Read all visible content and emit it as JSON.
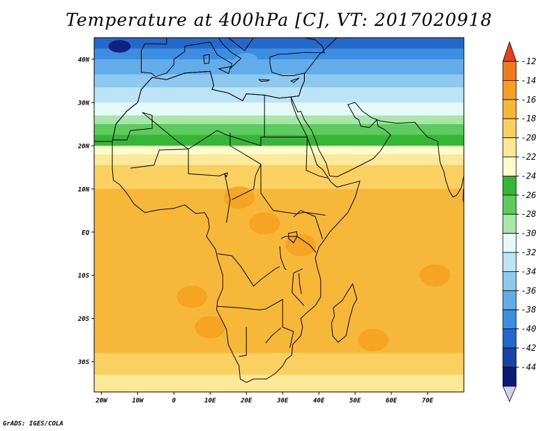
{
  "title": "Temperature at 400hPa [C], VT: 2017020918",
  "footer": "GrADS: IGES/COLA",
  "lat_labels": [
    {
      "lat": 40,
      "text": "40N"
    },
    {
      "lat": 30,
      "text": "30N"
    },
    {
      "lat": 20,
      "text": "20N"
    },
    {
      "lat": 10,
      "text": "10N"
    },
    {
      "lat": 0,
      "text": "EQ"
    },
    {
      "lat": -10,
      "text": "10S"
    },
    {
      "lat": -20,
      "text": "20S"
    },
    {
      "lat": -30,
      "text": "30S"
    }
  ],
  "lon_labels": [
    {
      "lon": -20,
      "text": "20W"
    },
    {
      "lon": -10,
      "text": "10W"
    },
    {
      "lon": 0,
      "text": "0"
    },
    {
      "lon": 10,
      "text": "10E"
    },
    {
      "lon": 20,
      "text": "20E"
    },
    {
      "lon": 30,
      "text": "30E"
    },
    {
      "lon": 40,
      "text": "40E"
    },
    {
      "lon": 50,
      "text": "50E"
    },
    {
      "lon": 60,
      "text": "60E"
    },
    {
      "lon": 70,
      "text": "70E"
    }
  ],
  "colorbar": {
    "labels": [
      "-12",
      "-14",
      "-16",
      "-18",
      "-20",
      "-22",
      "-24",
      "-26",
      "-28",
      "-30",
      "-32",
      "-34",
      "-36",
      "-38",
      "-40",
      "-42",
      "-44"
    ],
    "colors_top_to_bottom": [
      "#f07a1e",
      "#f5a020",
      "#f7b83a",
      "#fad060",
      "#fbe898",
      "#fefcc8",
      "#35b735",
      "#5ecb5e",
      "#a9e6a9",
      "#e6fafa",
      "#bde3f6",
      "#8ec9f0",
      "#62acea",
      "#3d8ee0",
      "#2468cc",
      "#1444a4",
      "#0a1a78"
    ],
    "max_arrow_color": "#e8401e",
    "min_arrow_color": "#cfd3ee"
  },
  "chart_data": {
    "type": "heatmap",
    "title": "Temperature at 400hPa [C], VT: 2017020918",
    "variable": "Temperature at 400hPa",
    "units": "C",
    "valid_time": "2017020918",
    "lon_range": [
      -22,
      80
    ],
    "lat_range": [
      -37,
      45
    ],
    "contour_levels": [
      -44,
      -42,
      -40,
      -38,
      -36,
      -34,
      -32,
      -30,
      -28,
      -26,
      -24,
      -22,
      -20,
      -18,
      -16,
      -14,
      -12
    ],
    "zonal_bands": [
      {
        "lat": 44,
        "value": -39
      },
      {
        "lat": 40,
        "value": -36
      },
      {
        "lat": 35,
        "value": -33
      },
      {
        "lat": 30,
        "value": -30
      },
      {
        "lat": 27,
        "value": -28
      },
      {
        "lat": 24,
        "value": -25
      },
      {
        "lat": 21,
        "value": -23
      },
      {
        "lat": 19,
        "value": -21
      },
      {
        "lat": 17,
        "value": -19
      },
      {
        "lat": 14,
        "value": -17
      },
      {
        "lat": 10,
        "value": -16
      },
      {
        "lat": 0,
        "value": -15
      },
      {
        "lat": -10,
        "value": -15
      },
      {
        "lat": -20,
        "value": -15
      },
      {
        "lat": -28,
        "value": -16
      },
      {
        "lat": -33,
        "value": -18
      },
      {
        "lat": -37,
        "value": -20
      }
    ],
    "warm_spots": [
      {
        "lon": 25,
        "lat": 2,
        "value": -13
      },
      {
        "lon": 35,
        "lat": -3,
        "value": -13
      },
      {
        "lon": 18,
        "lat": 8,
        "value": -13
      },
      {
        "lon": 10,
        "lat": -22,
        "value": -13
      },
      {
        "lon": 5,
        "lat": -15,
        "value": -13
      },
      {
        "lon": 72,
        "lat": -10,
        "value": -13
      },
      {
        "lon": 55,
        "lat": -25,
        "value": -13
      }
    ],
    "cold_spots": [
      {
        "lon": -15,
        "lat": 43,
        "value": -43
      },
      {
        "lon": 20,
        "lat": 40,
        "value": -36
      }
    ]
  }
}
